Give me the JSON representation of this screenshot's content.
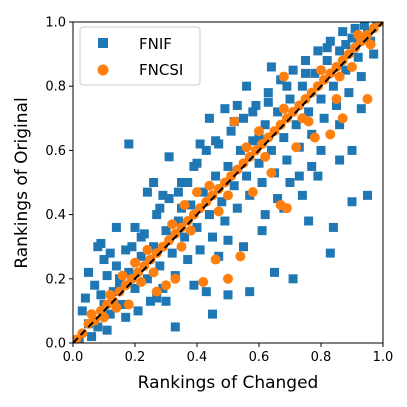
{
  "chart_data": {
    "type": "scatter",
    "title": "",
    "xlabel": "Rankings of Changed",
    "ylabel": "Rankings of Original",
    "xlim": [
      0.0,
      1.0
    ],
    "ylim": [
      0.0,
      1.0
    ],
    "xticks": [
      "0.0",
      "0.2",
      "0.4",
      "0.6",
      "0.8",
      "1.0"
    ],
    "yticks": [
      "0.0",
      "0.2",
      "0.4",
      "0.6",
      "0.8",
      "1.0"
    ],
    "grid": false,
    "legend_position": "top-left",
    "reference_line": {
      "style": "dashed",
      "color": "#000000",
      "from": [
        0,
        0
      ],
      "to": [
        1,
        1
      ]
    },
    "series": [
      {
        "name": "FNIF",
        "marker": "square",
        "color": "#1f77b4",
        "points": [
          [
            0.02,
            0.01
          ],
          [
            0.05,
            0.06
          ],
          [
            0.08,
            0.05
          ],
          [
            0.1,
            0.12
          ],
          [
            0.12,
            0.09
          ],
          [
            0.15,
            0.18
          ],
          [
            0.16,
            0.12
          ],
          [
            0.18,
            0.22
          ],
          [
            0.2,
            0.17
          ],
          [
            0.22,
            0.27
          ],
          [
            0.24,
            0.2
          ],
          [
            0.26,
            0.3
          ],
          [
            0.28,
            0.24
          ],
          [
            0.3,
            0.35
          ],
          [
            0.32,
            0.28
          ],
          [
            0.34,
            0.38
          ],
          [
            0.36,
            0.33
          ],
          [
            0.38,
            0.43
          ],
          [
            0.4,
            0.36
          ],
          [
            0.42,
            0.47
          ],
          [
            0.44,
            0.4
          ],
          [
            0.46,
            0.52
          ],
          [
            0.48,
            0.44
          ],
          [
            0.5,
            0.55
          ],
          [
            0.52,
            0.49
          ],
          [
            0.54,
            0.6
          ],
          [
            0.56,
            0.52
          ],
          [
            0.58,
            0.63
          ],
          [
            0.6,
            0.56
          ],
          [
            0.62,
            0.68
          ],
          [
            0.64,
            0.6
          ],
          [
            0.66,
            0.72
          ],
          [
            0.68,
            0.64
          ],
          [
            0.7,
            0.76
          ],
          [
            0.72,
            0.68
          ],
          [
            0.74,
            0.8
          ],
          [
            0.76,
            0.72
          ],
          [
            0.78,
            0.84
          ],
          [
            0.8,
            0.76
          ],
          [
            0.82,
            0.88
          ],
          [
            0.84,
            0.8
          ],
          [
            0.86,
            0.91
          ],
          [
            0.88,
            0.85
          ],
          [
            0.9,
            0.95
          ],
          [
            0.92,
            0.89
          ],
          [
            0.94,
            0.99
          ],
          [
            0.96,
            0.94
          ],
          [
            0.98,
            1.0
          ],
          [
            0.03,
            0.1
          ],
          [
            0.06,
            0.02
          ],
          [
            0.09,
            0.15
          ],
          [
            0.11,
            0.04
          ],
          [
            0.14,
            0.24
          ],
          [
            0.17,
            0.08
          ],
          [
            0.19,
            0.3
          ],
          [
            0.21,
            0.1
          ],
          [
            0.23,
            0.34
          ],
          [
            0.25,
            0.13
          ],
          [
            0.27,
            0.4
          ],
          [
            0.29,
            0.17
          ],
          [
            0.31,
            0.45
          ],
          [
            0.33,
            0.21
          ],
          [
            0.35,
            0.5
          ],
          [
            0.37,
            0.26
          ],
          [
            0.39,
            0.55
          ],
          [
            0.41,
            0.29
          ],
          [
            0.43,
            0.6
          ],
          [
            0.45,
            0.33
          ],
          [
            0.47,
            0.62
          ],
          [
            0.49,
            0.38
          ],
          [
            0.51,
            0.66
          ],
          [
            0.53,
            0.42
          ],
          [
            0.55,
            0.7
          ],
          [
            0.57,
            0.46
          ],
          [
            0.59,
            0.74
          ],
          [
            0.61,
            0.5
          ],
          [
            0.63,
            0.78
          ],
          [
            0.65,
            0.53
          ],
          [
            0.67,
            0.82
          ],
          [
            0.69,
            0.57
          ],
          [
            0.71,
            0.85
          ],
          [
            0.73,
            0.61
          ],
          [
            0.75,
            0.88
          ],
          [
            0.77,
            0.65
          ],
          [
            0.79,
            0.91
          ],
          [
            0.81,
            0.7
          ],
          [
            0.83,
            0.94
          ],
          [
            0.85,
            0.74
          ],
          [
            0.87,
            0.97
          ],
          [
            0.89,
            0.78
          ],
          [
            0.91,
            0.98
          ],
          [
            0.93,
            0.83
          ],
          [
            0.95,
            0.97
          ],
          [
            0.97,
            0.9
          ],
          [
            0.18,
            0.62
          ],
          [
            0.31,
            0.58
          ],
          [
            0.5,
            0.32
          ],
          [
            0.65,
            0.22
          ],
          [
            0.71,
            0.2
          ],
          [
            0.76,
            0.38
          ],
          [
            0.83,
            0.28
          ],
          [
            0.84,
            0.36
          ],
          [
            0.9,
            0.44
          ],
          [
            0.95,
            0.46
          ],
          [
            0.57,
            0.16
          ],
          [
            0.5,
            0.15
          ],
          [
            0.33,
            0.05
          ],
          [
            0.27,
            0.14
          ],
          [
            0.22,
            0.33
          ],
          [
            0.09,
            0.31
          ],
          [
            0.1,
            0.26
          ],
          [
            0.15,
            0.2
          ],
          [
            0.07,
            0.18
          ],
          [
            0.45,
            0.09
          ],
          [
            0.43,
            0.16
          ],
          [
            0.41,
            0.62
          ],
          [
            0.44,
            0.7
          ],
          [
            0.49,
            0.73
          ],
          [
            0.53,
            0.74
          ],
          [
            0.56,
            0.8
          ],
          [
            0.64,
            0.86
          ],
          [
            0.6,
            0.64
          ],
          [
            0.62,
            0.4
          ],
          [
            0.66,
            0.45
          ],
          [
            0.7,
            0.5
          ],
          [
            0.73,
            0.52
          ],
          [
            0.77,
            0.55
          ],
          [
            0.8,
            0.6
          ],
          [
            0.86,
            0.68
          ],
          [
            0.9,
            0.6
          ],
          [
            0.93,
            0.73
          ],
          [
            0.37,
            0.5
          ],
          [
            0.35,
            0.42
          ],
          [
            0.29,
            0.46
          ],
          [
            0.26,
            0.5
          ],
          [
            0.24,
            0.47
          ],
          [
            0.2,
            0.36
          ],
          [
            0.14,
            0.36
          ],
          [
            0.12,
            0.28
          ],
          [
            0.05,
            0.22
          ],
          [
            0.08,
            0.3
          ],
          [
            0.3,
            0.13
          ],
          [
            0.39,
            0.18
          ],
          [
            0.47,
            0.27
          ],
          [
            0.55,
            0.3
          ],
          [
            0.61,
            0.35
          ],
          [
            0.68,
            0.42
          ],
          [
            0.74,
            0.46
          ],
          [
            0.79,
            0.52
          ],
          [
            0.86,
            0.57
          ],
          [
            0.46,
            0.63
          ],
          [
            0.52,
            0.69
          ],
          [
            0.58,
            0.72
          ],
          [
            0.63,
            0.75
          ],
          [
            0.69,
            0.8
          ],
          [
            0.75,
            0.84
          ],
          [
            0.82,
            0.92
          ],
          [
            0.88,
            0.93
          ],
          [
            0.4,
            0.56
          ],
          [
            0.34,
            0.47
          ],
          [
            0.28,
            0.42
          ],
          [
            0.17,
            0.29
          ],
          [
            0.13,
            0.16
          ],
          [
            0.11,
            0.21
          ],
          [
            0.04,
            0.14
          ]
        ]
      },
      {
        "name": "FNCSI",
        "marker": "circle",
        "color": "#ff7f0e",
        "points": [
          [
            0.01,
            0.01
          ],
          [
            0.03,
            0.03
          ],
          [
            0.05,
            0.06
          ],
          [
            0.07,
            0.07
          ],
          [
            0.09,
            0.1
          ],
          [
            0.11,
            0.12
          ],
          [
            0.13,
            0.13
          ],
          [
            0.15,
            0.16
          ],
          [
            0.17,
            0.18
          ],
          [
            0.19,
            0.2
          ],
          [
            0.21,
            0.22
          ],
          [
            0.23,
            0.24
          ],
          [
            0.25,
            0.26
          ],
          [
            0.27,
            0.28
          ],
          [
            0.29,
            0.3
          ],
          [
            0.31,
            0.32
          ],
          [
            0.33,
            0.34
          ],
          [
            0.35,
            0.36
          ],
          [
            0.37,
            0.38
          ],
          [
            0.39,
            0.4
          ],
          [
            0.41,
            0.42
          ],
          [
            0.43,
            0.44
          ],
          [
            0.45,
            0.46
          ],
          [
            0.47,
            0.48
          ],
          [
            0.49,
            0.5
          ],
          [
            0.51,
            0.52
          ],
          [
            0.53,
            0.54
          ],
          [
            0.55,
            0.56
          ],
          [
            0.57,
            0.58
          ],
          [
            0.59,
            0.6
          ],
          [
            0.61,
            0.62
          ],
          [
            0.63,
            0.64
          ],
          [
            0.65,
            0.66
          ],
          [
            0.67,
            0.68
          ],
          [
            0.69,
            0.7
          ],
          [
            0.71,
            0.72
          ],
          [
            0.73,
            0.74
          ],
          [
            0.75,
            0.76
          ],
          [
            0.77,
            0.78
          ],
          [
            0.79,
            0.8
          ],
          [
            0.81,
            0.82
          ],
          [
            0.83,
            0.84
          ],
          [
            0.85,
            0.86
          ],
          [
            0.87,
            0.88
          ],
          [
            0.89,
            0.9
          ],
          [
            0.91,
            0.92
          ],
          [
            0.93,
            0.94
          ],
          [
            0.95,
            0.96
          ],
          [
            0.97,
            0.98
          ],
          [
            0.99,
            1.0
          ],
          [
            0.06,
            0.09
          ],
          [
            0.14,
            0.11
          ],
          [
            0.2,
            0.25
          ],
          [
            0.26,
            0.22
          ],
          [
            0.32,
            0.37
          ],
          [
            0.38,
            0.35
          ],
          [
            0.44,
            0.49
          ],
          [
            0.5,
            0.46
          ],
          [
            0.56,
            0.61
          ],
          [
            0.62,
            0.58
          ],
          [
            0.68,
            0.73
          ],
          [
            0.74,
            0.7
          ],
          [
            0.8,
            0.85
          ],
          [
            0.86,
            0.83
          ],
          [
            0.92,
            0.96
          ],
          [
            0.96,
            0.93
          ],
          [
            0.18,
            0.12
          ],
          [
            0.27,
            0.16
          ],
          [
            0.3,
            0.18
          ],
          [
            0.33,
            0.2
          ],
          [
            0.42,
            0.19
          ],
          [
            0.46,
            0.26
          ],
          [
            0.54,
            0.27
          ],
          [
            0.5,
            0.2
          ],
          [
            0.67,
            0.43
          ],
          [
            0.69,
            0.42
          ],
          [
            0.64,
            0.53
          ],
          [
            0.78,
            0.64
          ],
          [
            0.83,
            0.65
          ],
          [
            0.95,
            0.76
          ],
          [
            0.87,
            0.7
          ],
          [
            0.68,
            0.83
          ],
          [
            0.52,
            0.69
          ],
          [
            0.4,
            0.47
          ],
          [
            0.36,
            0.43
          ],
          [
            0.24,
            0.29
          ],
          [
            0.16,
            0.21
          ],
          [
            0.12,
            0.15
          ],
          [
            0.58,
            0.47
          ],
          [
            0.72,
            0.61
          ],
          [
            0.6,
            0.66
          ],
          [
            0.47,
            0.41
          ],
          [
            0.35,
            0.3
          ],
          [
            0.22,
            0.19
          ],
          [
            0.1,
            0.08
          ],
          [
            0.85,
            0.76
          ],
          [
            0.9,
            0.86
          ],
          [
            0.76,
            0.69
          ]
        ]
      }
    ]
  }
}
